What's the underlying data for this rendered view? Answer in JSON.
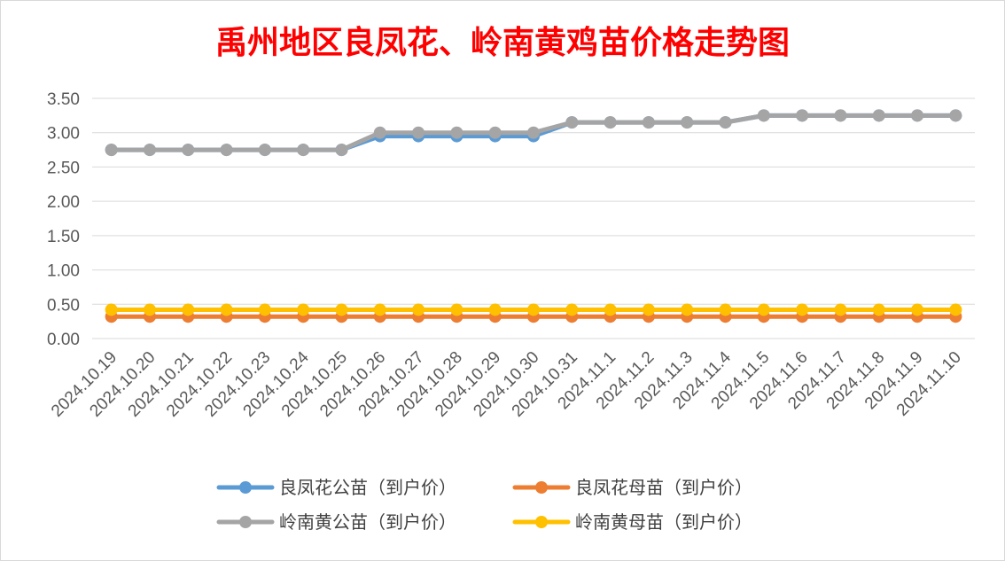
{
  "chart_data": {
    "type": "line",
    "title": "禹州地区良凤花、岭南黄鸡苗价格走势图",
    "xlabel": "",
    "ylabel": "",
    "ylim": [
      0,
      3.5
    ],
    "yticks": [
      "0.00",
      "0.50",
      "1.00",
      "1.50",
      "2.00",
      "2.50",
      "3.00",
      "3.50"
    ],
    "grid": true,
    "legend_position": "bottom",
    "categories": [
      "2024.10.19",
      "2024.10.20",
      "2024.10.21",
      "2024.10.22",
      "2024.10.23",
      "2024.10.24",
      "2024.10.25",
      "2024.10.26",
      "2024.10.27",
      "2024.10.28",
      "2024.10.29",
      "2024.10.30",
      "2024.10.31",
      "2024.11.1",
      "2024.11.2",
      "2024.11.3",
      "2024.11.4",
      "2024.11.5",
      "2024.11.6",
      "2024.11.7",
      "2024.11.8",
      "2024.11.9",
      "2024.11.10"
    ],
    "series": [
      {
        "name": "良凤花公苗（到户价）",
        "color": "#5b9bd5",
        "values": [
          2.75,
          2.75,
          2.75,
          2.75,
          2.75,
          2.75,
          2.75,
          2.95,
          2.95,
          2.95,
          2.95,
          2.95,
          3.15,
          3.15,
          3.15,
          3.15,
          3.15,
          3.25,
          3.25,
          3.25,
          3.25,
          3.25,
          3.25
        ]
      },
      {
        "name": "良凤花母苗（到户价）",
        "color": "#ed7d31",
        "values": [
          0.32,
          0.32,
          0.32,
          0.32,
          0.32,
          0.32,
          0.32,
          0.32,
          0.32,
          0.32,
          0.32,
          0.32,
          0.32,
          0.32,
          0.32,
          0.32,
          0.32,
          0.32,
          0.32,
          0.32,
          0.32,
          0.32,
          0.32
        ]
      },
      {
        "name": "岭南黄公苗（到户价）",
        "color": "#a5a5a5",
        "values": [
          2.75,
          2.75,
          2.75,
          2.75,
          2.75,
          2.75,
          2.75,
          3.0,
          3.0,
          3.0,
          3.0,
          3.0,
          3.15,
          3.15,
          3.15,
          3.15,
          3.15,
          3.25,
          3.25,
          3.25,
          3.25,
          3.25,
          3.25
        ]
      },
      {
        "name": "岭南黄母苗（到户价）",
        "color": "#ffc000",
        "values": [
          0.42,
          0.42,
          0.42,
          0.42,
          0.42,
          0.42,
          0.42,
          0.42,
          0.42,
          0.42,
          0.42,
          0.42,
          0.42,
          0.42,
          0.42,
          0.42,
          0.42,
          0.42,
          0.42,
          0.42,
          0.42,
          0.42,
          0.42
        ]
      }
    ]
  }
}
